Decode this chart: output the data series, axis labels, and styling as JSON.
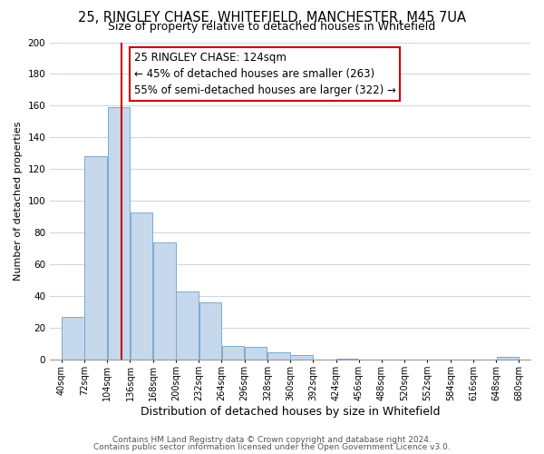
{
  "title": "25, RINGLEY CHASE, WHITEFIELD, MANCHESTER, M45 7UA",
  "subtitle": "Size of property relative to detached houses in Whitefield",
  "xlabel": "Distribution of detached houses by size in Whitefield",
  "ylabel": "Number of detached properties",
  "bins_left": [
    40,
    72,
    104,
    136,
    168,
    200,
    232,
    264,
    296,
    328,
    360,
    392,
    424,
    456,
    488,
    520,
    552,
    584,
    616,
    648
  ],
  "bin_width": 32,
  "bar_heights": [
    27,
    128,
    159,
    93,
    74,
    43,
    36,
    9,
    8,
    5,
    3,
    0,
    1,
    0,
    0,
    0,
    0,
    0,
    0,
    2
  ],
  "bar_color": "#c5d8ec",
  "bar_edgecolor": "#7aaacf",
  "vline_color": "#cc0000",
  "vline_x": 124,
  "annotation_box_text": "25 RINGLEY CHASE: 124sqm\n← 45% of detached houses are smaller (263)\n55% of semi-detached houses are larger (322) →",
  "annotation_fontsize": 8.5,
  "box_edgecolor": "#cc0000",
  "tick_labels": [
    "40sqm",
    "72sqm",
    "104sqm",
    "136sqm",
    "168sqm",
    "200sqm",
    "232sqm",
    "264sqm",
    "296sqm",
    "328sqm",
    "360sqm",
    "392sqm",
    "424sqm",
    "456sqm",
    "488sqm",
    "520sqm",
    "552sqm",
    "584sqm",
    "616sqm",
    "648sqm",
    "680sqm"
  ],
  "ylim": [
    0,
    200
  ],
  "yticks": [
    0,
    20,
    40,
    60,
    80,
    100,
    120,
    140,
    160,
    180,
    200
  ],
  "footer1": "Contains HM Land Registry data © Crown copyright and database right 2024.",
  "footer2": "Contains public sector information licensed under the Open Government Licence v3.0.",
  "background_color": "#ffffff",
  "grid_color": "#ccd8e8",
  "title_fontsize": 10.5,
  "subtitle_fontsize": 9,
  "xlabel_fontsize": 9,
  "ylabel_fontsize": 8,
  "footer_fontsize": 6.5,
  "tick_fontsize": 7
}
